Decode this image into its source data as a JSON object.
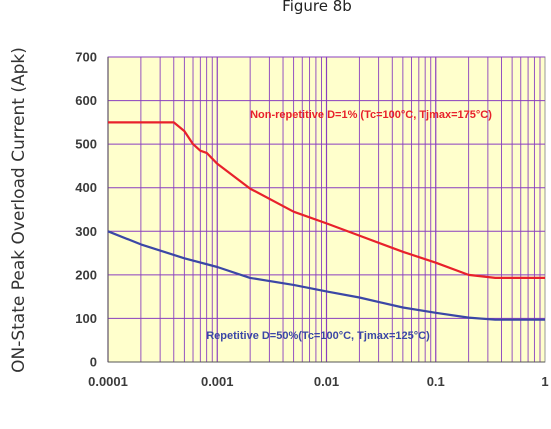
{
  "chart_data": {
    "type": "line",
    "title": "Figure 8b",
    "xlabel": "",
    "ylabel": "ON-State Peak Overload Current (Apk)",
    "x_scale": "log",
    "xlim": [
      0.0001,
      1
    ],
    "ylim": [
      0,
      700
    ],
    "x_ticks": [
      0.0001,
      0.001,
      0.01,
      0.1,
      1
    ],
    "x_tick_labels": [
      "0.0001",
      "0.001",
      "0.01",
      "0.1",
      "1"
    ],
    "y_ticks": [
      0,
      100,
      200,
      300,
      400,
      500,
      600,
      700
    ],
    "y_tick_labels": [
      "0",
      "100",
      "200",
      "300",
      "400",
      "500",
      "600",
      "700"
    ],
    "grid": true,
    "background_color": "#ffffcc",
    "grid_color": "#8a3fbf",
    "series": [
      {
        "color": "#e8212b",
        "x": [
          0.0001,
          0.0002,
          0.0004,
          0.0005,
          0.0006,
          0.0007,
          0.0008,
          0.001,
          0.002,
          0.005,
          0.01,
          0.02,
          0.05,
          0.1,
          0.2,
          0.35,
          1
        ],
        "y": [
          550,
          550,
          550,
          530,
          500,
          485,
          480,
          455,
          398,
          345,
          318,
          290,
          253,
          228,
          200,
          193,
          193
        ]
      },
      {
        "color": "#3b47a6",
        "x": [
          0.0001,
          0.0002,
          0.0005,
          0.001,
          0.002,
          0.005,
          0.01,
          0.02,
          0.05,
          0.1,
          0.2,
          0.35,
          1
        ],
        "y": [
          300,
          270,
          238,
          218,
          193,
          177,
          162,
          148,
          125,
          113,
          102,
          97,
          97
        ]
      }
    ],
    "annotations": [
      {
        "text": "Non-repetitive D=1% (Tc=100°C, Tjmax=175°C)",
        "color": "#e8212b"
      },
      {
        "text": "Repetitive D=50%(Tc=100°C, Tjmax=125°C)",
        "color": "#3b47a6"
      }
    ]
  }
}
